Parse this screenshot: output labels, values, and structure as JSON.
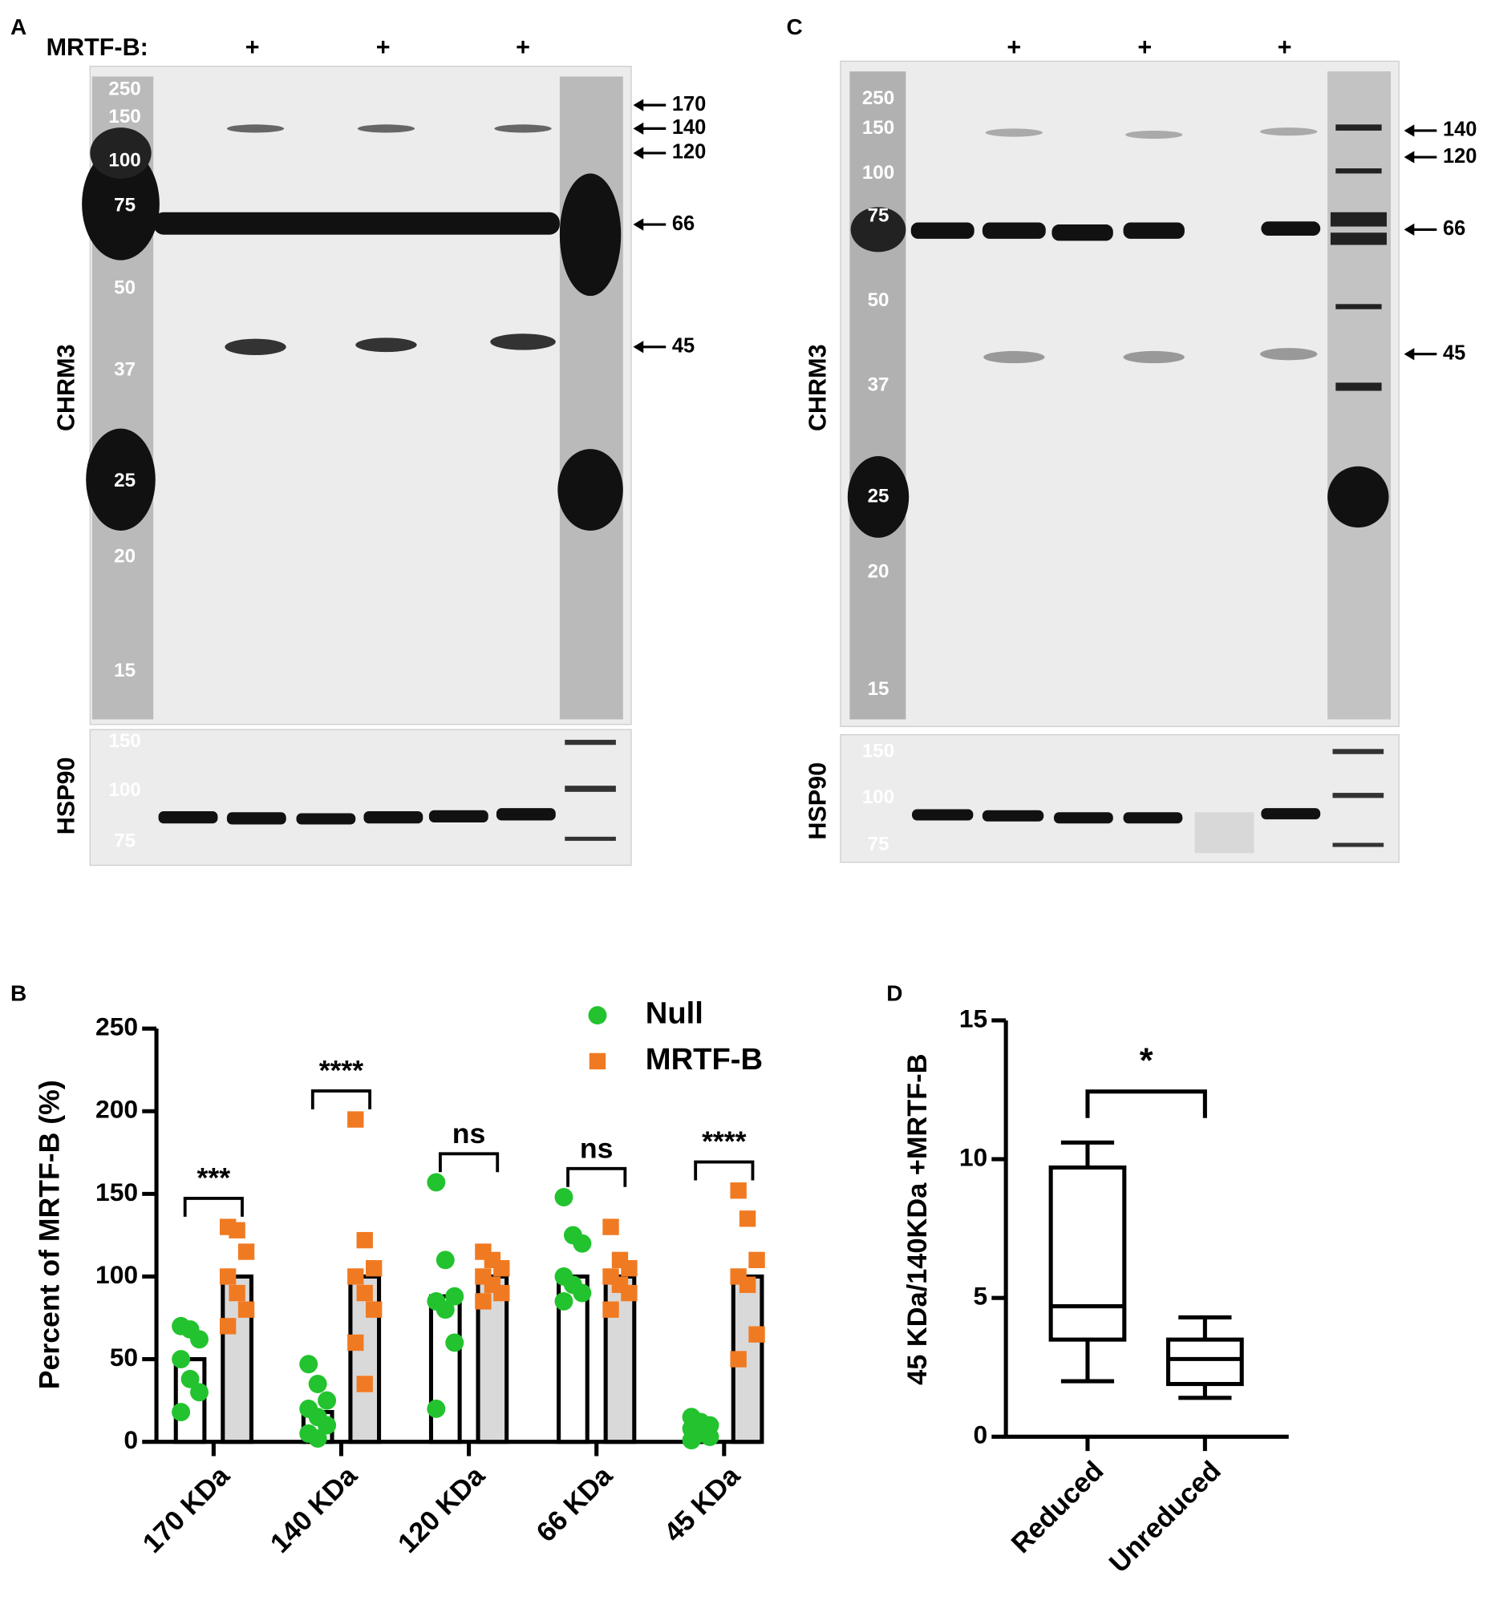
{
  "blot_a": {
    "panel": "A",
    "header": "MRTF-B:",
    "plus": [
      "+",
      "+",
      "+"
    ],
    "ladder": [
      "250",
      "150",
      "100",
      "75",
      "50",
      "37",
      "25",
      "20",
      "15"
    ],
    "arrows": [
      "170",
      "140",
      "120",
      "66",
      "45"
    ],
    "main_label": "CHRM3",
    "loading_label": "HSP90",
    "loading_ladder": [
      "150",
      "100",
      "75"
    ]
  },
  "blot_c": {
    "panel": "C",
    "plus": [
      "+",
      "+",
      "+"
    ],
    "ladder": [
      "250",
      "150",
      "100",
      "75",
      "50",
      "37",
      "25",
      "20",
      "15"
    ],
    "arrows": [
      "140",
      "120",
      "66",
      "45"
    ],
    "main_label": "CHRM3",
    "loading_label": "HSP90",
    "loading_ladder": [
      "150",
      "100",
      "75"
    ]
  },
  "chart_data": [
    {
      "panel": "B",
      "type": "bar",
      "y_label": "Percent of MRTF-B (%)",
      "categories": [
        "170 KDa",
        "140 KDa",
        "120 KDa",
        "66 KDa",
        "45 KDa"
      ],
      "series": [
        {
          "name": "Null",
          "color": "#22c32e",
          "marker": "circle",
          "values": [
            50,
            18,
            88,
            100,
            5
          ],
          "points": [
            [
              70,
              68,
              62,
              50,
              38,
              30,
              18
            ],
            [
              47,
              35,
              25,
              20,
              15,
              10,
              5,
              2
            ],
            [
              157,
              110,
              88,
              85,
              80,
              60,
              20
            ],
            [
              148,
              125,
              120,
              100,
              95,
              90,
              85
            ],
            [
              15,
              12,
              10,
              8,
              5,
              3,
              1
            ]
          ]
        },
        {
          "name": "MRTF-B",
          "color": "#f07a22",
          "marker": "square",
          "values": [
            100,
            100,
            100,
            100,
            100
          ],
          "points": [
            [
              130,
              128,
              115,
              100,
              90,
              80,
              70
            ],
            [
              195,
              122,
              105,
              100,
              90,
              80,
              60,
              35
            ],
            [
              115,
              110,
              105,
              100,
              95,
              90,
              85
            ],
            [
              130,
              110,
              105,
              100,
              95,
              90,
              80
            ],
            [
              152,
              135,
              110,
              100,
              95,
              65,
              50
            ]
          ]
        }
      ],
      "annotations": [
        "***",
        "****",
        "ns",
        "ns",
        "****"
      ],
      "ylim": [
        0,
        250
      ],
      "yticks": [
        0,
        50,
        100,
        150,
        200,
        250
      ],
      "legend": "upper right"
    },
    {
      "panel": "D",
      "type": "box",
      "y_label": "45 KDa/140KDa +MRTF-B",
      "categories": [
        "Reduced",
        "Unreduced"
      ],
      "boxes": [
        {
          "min": 2,
          "q1": 3.5,
          "median": 4.7,
          "q3": 9.7,
          "max": 10.6
        },
        {
          "min": 1.4,
          "q1": 1.9,
          "median": 2.8,
          "q3": 3.5,
          "max": 4.3
        }
      ],
      "annotations": [
        "*"
      ],
      "ylim": [
        0,
        15
      ],
      "yticks": [
        0,
        5,
        10,
        15
      ]
    }
  ]
}
